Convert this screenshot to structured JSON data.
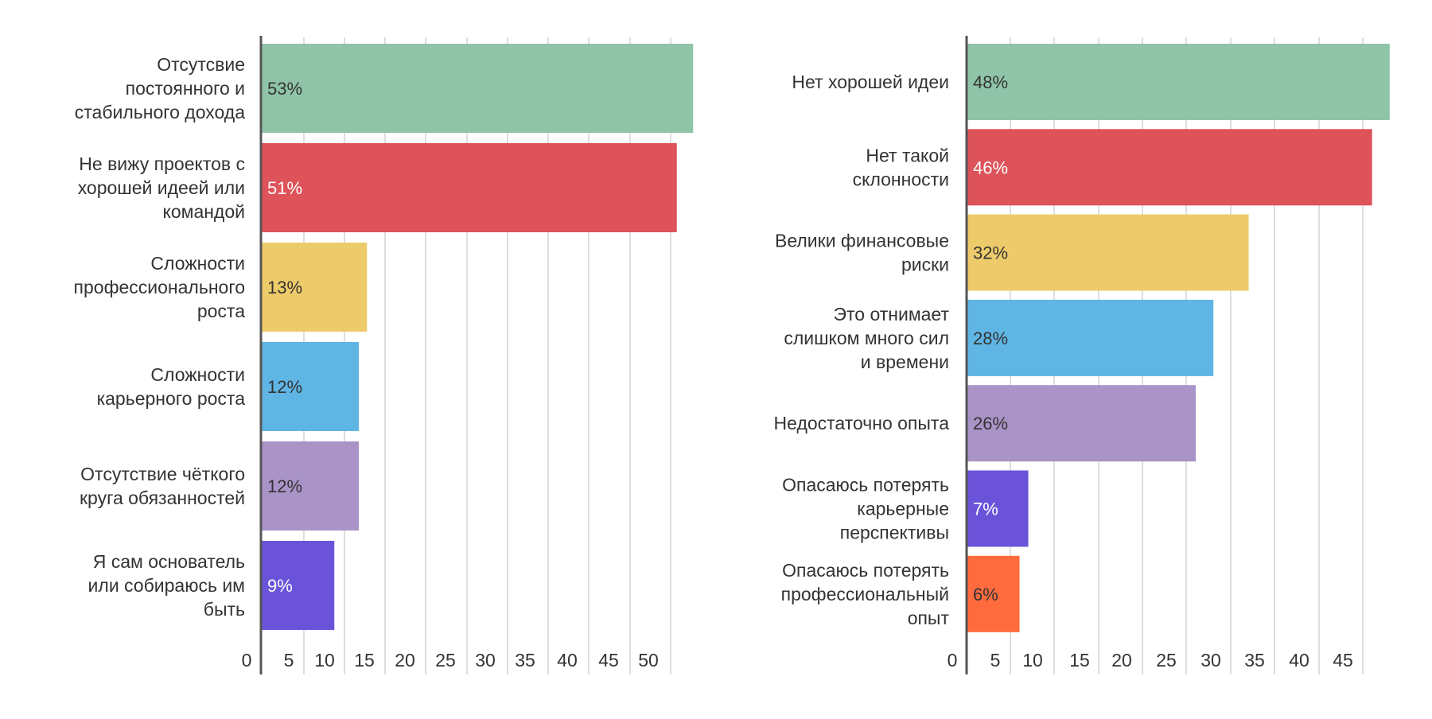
{
  "chart_data": [
    {
      "type": "bar",
      "orientation": "horizontal",
      "title": "",
      "xlabel": "",
      "ylabel": "",
      "xlim": [
        0,
        53
      ],
      "ticks": [
        "0",
        "5",
        "10",
        "15",
        "20",
        "25",
        "30",
        "35",
        "40",
        "45",
        "50"
      ],
      "grid": true,
      "categories": [
        [
          "Отсутсвие",
          "постоянного и",
          "стабильного дохода"
        ],
        [
          "Не вижу проектов с",
          "хорошей идеей или",
          "командой"
        ],
        [
          "Сложности",
          "профессионального",
          "роста"
        ],
        [
          "Сложности",
          "карьерного роста"
        ],
        [
          "Отсутствие чёткого",
          "круга обязанностей"
        ],
        [
          "Я сам основатель",
          "или собираюсь им",
          "быть"
        ]
      ],
      "values": [
        53,
        51,
        13,
        12,
        12,
        9
      ],
      "value_labels": [
        "53%",
        "51%",
        "13%",
        "12%",
        "12%",
        "9%"
      ],
      "colors": [
        "#8fc4a8",
        "#dd5359",
        "#eecb6a",
        "#5fb5e3",
        "#aa93c7",
        "#6b53d9"
      ],
      "label_colors": [
        "#333333",
        "#ffffff",
        "#333333",
        "#333333",
        "#333333",
        "#ffffff"
      ]
    },
    {
      "type": "bar",
      "orientation": "horizontal",
      "title": "",
      "xlabel": "",
      "ylabel": "",
      "xlim": [
        0,
        48
      ],
      "ticks": [
        "0",
        "5",
        "10",
        "15",
        "20",
        "25",
        "30",
        "35",
        "40",
        "45"
      ],
      "grid": true,
      "categories": [
        [
          "Нет хорошей идеи"
        ],
        [
          "Нет такой",
          "склонности"
        ],
        [
          "Велики финансовые",
          "риски"
        ],
        [
          "Это отнимает",
          "слишком много сил",
          "и времени"
        ],
        [
          "Недостаточно опыта"
        ],
        [
          "Опасаюсь потерять",
          "карьерные",
          "перспективы"
        ],
        [
          "Опасаюсь потерять",
          "профессиональный",
          "опыт"
        ]
      ],
      "values": [
        48,
        46,
        32,
        28,
        26,
        7,
        6
      ],
      "value_labels": [
        "48%",
        "46%",
        "32%",
        "28%",
        "26%",
        "7%",
        "6%"
      ],
      "colors": [
        "#8fc4a8",
        "#dd5359",
        "#eecb6a",
        "#5fb5e3",
        "#aa93c7",
        "#6b53d9",
        "#ff6b3d"
      ],
      "label_colors": [
        "#333333",
        "#ffffff",
        "#333333",
        "#333333",
        "#333333",
        "#ffffff",
        "#333333"
      ]
    }
  ]
}
